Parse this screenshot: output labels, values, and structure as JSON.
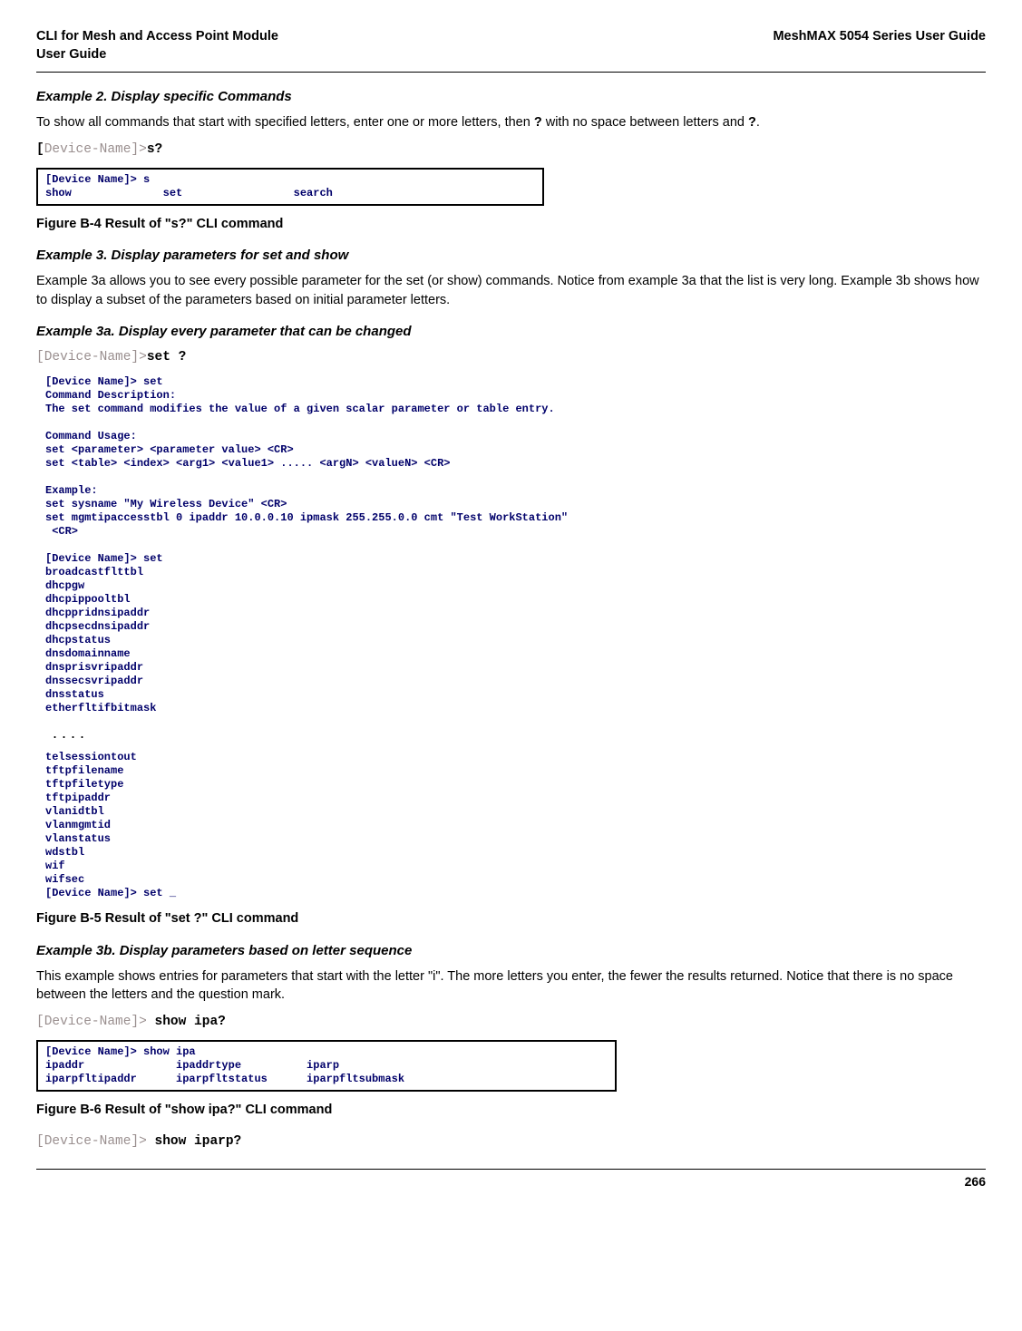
{
  "header": {
    "left1": "CLI for Mesh and Access Point Module",
    "left2": " User Guide",
    "right": "MeshMAX 5054 Series User Guide"
  },
  "ex2": {
    "title": "Example 2. Display specific Commands",
    "body_a": "To show all commands that start with specified letters, enter one or more letters, then ",
    "q1": "?",
    "body_b": " with no space between letters and ",
    "q2": "?",
    "body_c": "."
  },
  "cli1": {
    "bracket": "[",
    "device": "Device-Name]>",
    "cmd": "s?"
  },
  "termbox1": "[Device Name]> s\nshow              set                 search",
  "fig4": "Figure B-4 Result of \"s?\" CLI command",
  "ex3": {
    "title": "Example 3. Display parameters for set and show",
    "body": "Example 3a allows you to see every possible parameter for the set (or show) commands. Notice from example 3a that the list is very long. Example 3b shows how to display a subset of the parameters based on initial parameter letters."
  },
  "ex3a": {
    "title": "Example 3a. Display every parameter that can be changed"
  },
  "cli2": {
    "device": "[Device-Name]>",
    "cmd": "set ?"
  },
  "termblock_top": "[Device Name]> set\nCommand Description:\nThe set command modifies the value of a given scalar parameter or table entry.\n\nCommand Usage:\nset <parameter> <parameter value> <CR>\nset <table> <index> <arg1> <value1> ..... <argN> <valueN> <CR>\n\nExample:\nset sysname \"My Wireless Device\" <CR>\nset mgmtipaccesstbl 0 ipaddr 10.0.0.10 ipmask 255.255.0.0 cmt \"Test WorkStation\"\n <CR>\n\n[Device Name]> set\nbroadcastflttbl\ndhcpgw\ndhcpippooltbl\ndhcppridnsipaddr\ndhcpsecdnsipaddr\ndhcpstatus\ndnsdomainname\ndnsprisvripaddr\ndnssecsvripaddr\ndnsstatus\netherfltifbitmask",
  "term_dots": ".\n.\n.\n.",
  "termblock_bottom": "telsessiontout\ntftpfilename\ntftpfiletype\ntftpipaddr\nvlanidtbl\nvlanmgmtid\nvlanstatus\nwdstbl\nwif\nwifsec\n[Device Name]> set _",
  "fig5": "Figure B-5 Result of \"set ?\" CLI command",
  "ex3b": {
    "title": "Example 3b. Display parameters based on letter sequence",
    "body": "This example shows entries for parameters that start with the letter \"i\". The more letters you enter, the fewer the results returned. Notice that there is no space between the letters and the question mark."
  },
  "cli3": {
    "device": "[Device-Name]>",
    "space": " ",
    "cmd": "show ipa?"
  },
  "termbox3": "[Device Name]> show ipa\nipaddr              ipaddrtype          iparp\niparpfltipaddr      iparpfltstatus      iparpfltsubmask",
  "fig6": "Figure B-6 Result of \"show ipa?\" CLI command",
  "cli4": {
    "device": "[Device-Name]>",
    "space": " ",
    "cmd": "show iparp?"
  },
  "pagenum": "266"
}
